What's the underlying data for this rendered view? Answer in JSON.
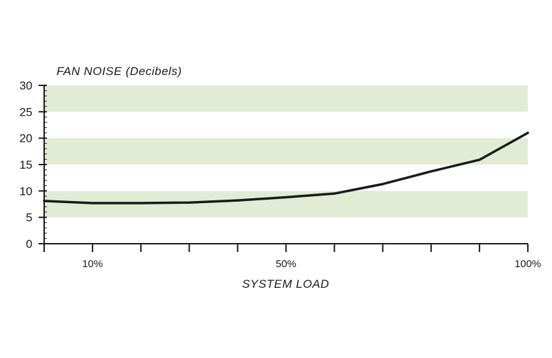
{
  "chart_data": {
    "type": "line",
    "ylabel": "FAN NOISE (Decibels)",
    "xlabel": "SYSTEM LOAD",
    "xlim": [
      0,
      100
    ],
    "ylim": [
      0,
      30
    ],
    "x_tick_labels": [
      {
        "x": 10,
        "label": "10%"
      },
      {
        "x": 50,
        "label": "50%"
      },
      {
        "x": 100,
        "label": "100%"
      }
    ],
    "y_ticks": [
      0,
      5,
      10,
      15,
      20,
      25,
      30
    ],
    "band_color": "#e2ecd4",
    "line_color": "#1a1a1a",
    "bands": [
      [
        5,
        10
      ],
      [
        15,
        20
      ],
      [
        25,
        30
      ]
    ],
    "series": [
      {
        "x": [
          0,
          10,
          20,
          30,
          40,
          50,
          60,
          70,
          80,
          90,
          100
        ],
        "values": [
          8.1,
          7.7,
          7.7,
          7.8,
          8.2,
          8.8,
          9.5,
          11.3,
          13.7,
          15.9,
          21.0
        ]
      }
    ]
  }
}
